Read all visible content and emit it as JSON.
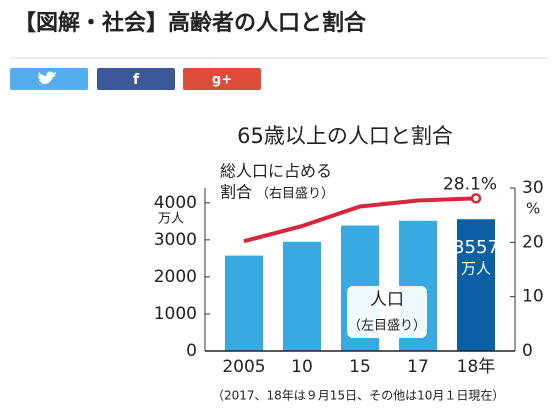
{
  "header": {
    "title": "【図解・社会】高齢者の人口と割合"
  },
  "share": {
    "facebook": "f",
    "google": "g+"
  },
  "chart_data": {
    "type": "bar-line",
    "title": "65歳以上の人口と割合",
    "categories": [
      "2005",
      "10",
      "15",
      "17",
      "18年"
    ],
    "series": [
      {
        "name": "人口",
        "axis_note": "（左目盛り）",
        "axis": "y",
        "colors": [
          "#39a9e1",
          "#39a9e1",
          "#39a9e1",
          "#39a9e1",
          "#0b5fa5"
        ],
        "values": [
          2576,
          2948,
          3387,
          3515,
          3557
        ]
      },
      {
        "name_lines": [
          "総人口に占める",
          "割合"
        ],
        "axis_note": "（右目盛り）",
        "axis": "y2",
        "color": "#d7263d",
        "values": [
          20.2,
          23.0,
          26.6,
          27.7,
          28.1
        ],
        "value_labels": [
          null,
          null,
          null,
          null,
          "28.1%"
        ]
      }
    ],
    "ylim": [
      0,
      4400
    ],
    "yticks": [
      0,
      1000,
      2000,
      3000,
      4000
    ],
    "y_unit": "万人",
    "y2lim": [
      0,
      30
    ],
    "y2ticks": [
      0,
      10,
      20,
      30
    ],
    "y2_unit": "%",
    "footnote": "（2017、18年は９月15日、その他は10月１日現在）"
  }
}
